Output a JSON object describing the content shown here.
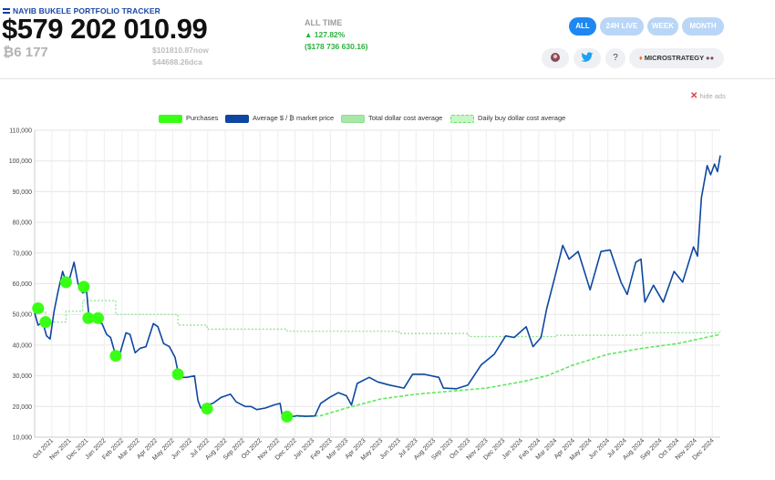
{
  "header": {
    "title": "NAYIB BUKELE PORTFOLIO TRACKER",
    "portfolio_value": "$579 202 010.99",
    "btc_holdings": "₿6 177",
    "now_price": "$101810.87now",
    "dca_price": "$44688.26dca"
  },
  "all_time": {
    "label": "ALL TIME",
    "percent": "▲ 127.82%",
    "usd": "($178 736 630.16)"
  },
  "timeframes": [
    "ALL",
    "24H LIVE",
    "WEEK",
    "MONTH"
  ],
  "active_timeframe": "ALL",
  "toolbar": {
    "question_label": "?",
    "microstrategy_label": "MICROSTRATEGY"
  },
  "hide_ads": "hide ads",
  "colors": {
    "accent": "#1e87f0",
    "price_line": "#0d47a1",
    "purchases": "#39ff14",
    "total_dca": "#8be08b",
    "daily_dca": "#5fe85f",
    "gain": "#2bb13c"
  },
  "chart_data": {
    "type": "line",
    "legend": [
      "Purchases",
      "Average $ / ₿ market price",
      "Total dollar cost average",
      "Daily buy dollar cost average"
    ],
    "legend_placement": "top",
    "grid": true,
    "ylim": [
      10000,
      110000
    ],
    "y_ticks": [
      "10,000",
      "20,000",
      "30,000",
      "40,000",
      "50,000",
      "60,000",
      "70,000",
      "80,000",
      "90,000",
      "100,000",
      "110,000"
    ],
    "x_labels": [
      "Oct 2021",
      "Nov 2021",
      "Dec 2021",
      "Jan 2022",
      "Feb 2022",
      "Mar 2022",
      "Apr 2022",
      "May 2022",
      "Jun 2022",
      "Jul 2022",
      "Aug 2022",
      "Sep 2022",
      "Oct 2022",
      "Nov 2022",
      "Dec 2022",
      "Jan 2023",
      "Feb 2023",
      "Mar 2023",
      "Apr 2023",
      "May 2023",
      "Jun 2023",
      "Jul 2023",
      "Aug 2023",
      "Sep 2023",
      "Oct 2023",
      "Nov 2023",
      "Dec 2023",
      "Jan 2024",
      "Feb 2024",
      "Mar 2024",
      "Apr 2024",
      "May 2024",
      "Jun 2024",
      "Jul 2024",
      "Aug 2024",
      "Sep 2024",
      "Oct 2024",
      "Nov 2024",
      "Dec 2024"
    ],
    "x_range": [
      "2021-09-01",
      "2024-12-15"
    ],
    "series": [
      {
        "name": "Average $ / ₿ market price",
        "points": [
          [
            "2021-09-01",
            50500
          ],
          [
            "2021-09-07",
            46500
          ],
          [
            "2021-09-15",
            47500
          ],
          [
            "2021-09-22",
            43000
          ],
          [
            "2021-09-28",
            42000
          ],
          [
            "2021-10-05",
            51000
          ],
          [
            "2021-10-12",
            57500
          ],
          [
            "2021-10-20",
            64000
          ],
          [
            "2021-10-26",
            60500
          ],
          [
            "2021-11-01",
            61500
          ],
          [
            "2021-11-09",
            67000
          ],
          [
            "2021-11-16",
            60000
          ],
          [
            "2021-11-24",
            57000
          ],
          [
            "2021-12-01",
            57500
          ],
          [
            "2021-12-05",
            49500
          ],
          [
            "2021-12-12",
            48500
          ],
          [
            "2021-12-20",
            47500
          ],
          [
            "2021-12-28",
            47000
          ],
          [
            "2022-01-05",
            43500
          ],
          [
            "2022-01-12",
            42500
          ],
          [
            "2022-01-21",
            36500
          ],
          [
            "2022-01-28",
            37000
          ],
          [
            "2022-02-08",
            44000
          ],
          [
            "2022-02-15",
            43500
          ],
          [
            "2022-02-24",
            37500
          ],
          [
            "2022-03-05",
            39000
          ],
          [
            "2022-03-15",
            39500
          ],
          [
            "2022-03-28",
            47000
          ],
          [
            "2022-04-05",
            46000
          ],
          [
            "2022-04-15",
            40500
          ],
          [
            "2022-04-25",
            39500
          ],
          [
            "2022-05-05",
            36000
          ],
          [
            "2022-05-12",
            29500
          ],
          [
            "2022-05-25",
            29500
          ],
          [
            "2022-06-08",
            30000
          ],
          [
            "2022-06-14",
            22000
          ],
          [
            "2022-06-19",
            19500
          ],
          [
            "2022-06-28",
            20500
          ],
          [
            "2022-07-10",
            21000
          ],
          [
            "2022-07-25",
            23000
          ],
          [
            "2022-08-10",
            24000
          ],
          [
            "2022-08-20",
            21500
          ],
          [
            "2022-09-05",
            20000
          ],
          [
            "2022-09-15",
            20000
          ],
          [
            "2022-09-25",
            19000
          ],
          [
            "2022-10-10",
            19500
          ],
          [
            "2022-10-25",
            20500
          ],
          [
            "2022-11-05",
            21000
          ],
          [
            "2022-11-09",
            16800
          ],
          [
            "2022-11-20",
            16500
          ],
          [
            "2022-12-05",
            17000
          ],
          [
            "2022-12-20",
            16800
          ],
          [
            "2023-01-05",
            16900
          ],
          [
            "2023-01-15",
            21000
          ],
          [
            "2023-01-31",
            23000
          ],
          [
            "2023-02-15",
            24500
          ],
          [
            "2023-03-01",
            23500
          ],
          [
            "2023-03-10",
            20500
          ],
          [
            "2023-03-20",
            27500
          ],
          [
            "2023-04-10",
            29500
          ],
          [
            "2023-04-25",
            28000
          ],
          [
            "2023-05-15",
            27000
          ],
          [
            "2023-06-10",
            26000
          ],
          [
            "2023-06-25",
            30500
          ],
          [
            "2023-07-15",
            30500
          ],
          [
            "2023-08-10",
            29500
          ],
          [
            "2023-08-18",
            26000
          ],
          [
            "2023-09-10",
            25800
          ],
          [
            "2023-09-30",
            27000
          ],
          [
            "2023-10-23",
            33500
          ],
          [
            "2023-11-15",
            37000
          ],
          [
            "2023-12-05",
            43000
          ],
          [
            "2023-12-20",
            42500
          ],
          [
            "2024-01-10",
            46000
          ],
          [
            "2024-01-22",
            39500
          ],
          [
            "2024-02-05",
            42500
          ],
          [
            "2024-02-15",
            52000
          ],
          [
            "2024-02-29",
            62000
          ],
          [
            "2024-03-14",
            72500
          ],
          [
            "2024-03-25",
            68000
          ],
          [
            "2024-04-10",
            70500
          ],
          [
            "2024-04-20",
            64500
          ],
          [
            "2024-05-01",
            58000
          ],
          [
            "2024-05-20",
            70500
          ],
          [
            "2024-06-05",
            71000
          ],
          [
            "2024-06-24",
            60500
          ],
          [
            "2024-07-05",
            56500
          ],
          [
            "2024-07-20",
            67000
          ],
          [
            "2024-07-29",
            68000
          ],
          [
            "2024-08-05",
            54000
          ],
          [
            "2024-08-20",
            59500
          ],
          [
            "2024-09-06",
            54000
          ],
          [
            "2024-09-25",
            64000
          ],
          [
            "2024-10-10",
            60500
          ],
          [
            "2024-10-29",
            72000
          ],
          [
            "2024-11-05",
            69000
          ],
          [
            "2024-11-12",
            88000
          ],
          [
            "2024-11-22",
            98500
          ],
          [
            "2024-11-28",
            95500
          ],
          [
            "2024-12-05",
            99000
          ],
          [
            "2024-12-10",
            96500
          ],
          [
            "2024-12-15",
            101800
          ]
        ]
      },
      {
        "name": "Total dollar cost average",
        "points": [
          [
            "2021-09-07",
            50800
          ],
          [
            "2021-09-20",
            47500
          ],
          [
            "2021-10-26",
            51000
          ],
          [
            "2021-11-24",
            54500
          ],
          [
            "2021-12-21",
            54500
          ],
          [
            "2022-01-21",
            50000
          ],
          [
            "2022-05-09",
            50000
          ],
          [
            "2022-05-10",
            46500
          ],
          [
            "2022-06-30",
            45200
          ],
          [
            "2022-11-17",
            44500
          ],
          [
            "2023-06-01",
            43800
          ],
          [
            "2023-10-01",
            42800
          ],
          [
            "2024-03-01",
            43200
          ],
          [
            "2024-08-01",
            44000
          ],
          [
            "2024-12-15",
            44700
          ]
        ]
      },
      {
        "name": "Daily buy dollar cost average",
        "points": [
          [
            "2022-11-17",
            16800
          ],
          [
            "2022-12-20",
            16800
          ],
          [
            "2023-01-15",
            17000
          ],
          [
            "2023-03-01",
            19500
          ],
          [
            "2023-05-01",
            22500
          ],
          [
            "2023-07-01",
            24000
          ],
          [
            "2023-09-01",
            25000
          ],
          [
            "2023-11-01",
            26000
          ],
          [
            "2024-01-01",
            28000
          ],
          [
            "2024-02-15",
            30000
          ],
          [
            "2024-04-01",
            33500
          ],
          [
            "2024-06-01",
            37000
          ],
          [
            "2024-08-01",
            39000
          ],
          [
            "2024-10-01",
            40500
          ],
          [
            "2024-12-15",
            43500
          ]
        ]
      },
      {
        "name": "Purchases",
        "points": [
          [
            "2021-09-07",
            52000
          ],
          [
            "2021-09-20",
            47500
          ],
          [
            "2021-10-26",
            60500
          ],
          [
            "2021-11-26",
            59000
          ],
          [
            "2021-12-04",
            48800
          ],
          [
            "2021-12-21",
            48800
          ],
          [
            "2022-01-21",
            36500
          ],
          [
            "2022-05-10",
            30500
          ],
          [
            "2022-06-30",
            19300
          ],
          [
            "2022-11-17",
            16700
          ]
        ]
      }
    ]
  }
}
